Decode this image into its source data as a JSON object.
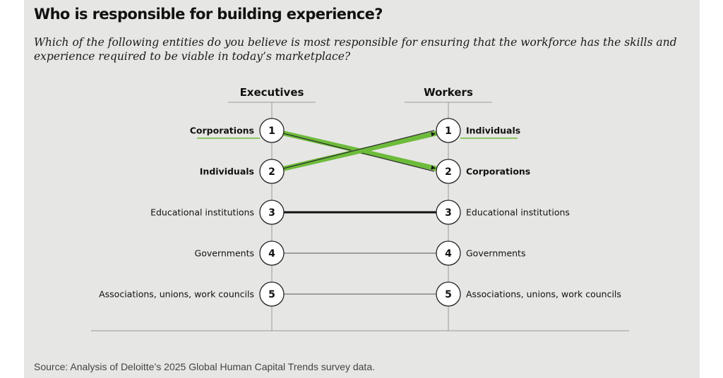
{
  "title": "Who is responsible for building experience?",
  "subtitle": "Which of the following entities do you believe is most responsible for ensuring that the workforce has the skills and experience required to be viable in today’s marketplace?",
  "source": "Source: Analysis of Deloitte’s 2025 Global Human Capital Trends survey data.",
  "colors": {
    "highlight": "#6dbb3a",
    "neutral": "#111111",
    "background": "#e6e6e4"
  },
  "chart_data": {
    "type": "slope",
    "columns": [
      "Executives",
      "Workers"
    ],
    "entities": [
      {
        "name": "Corporations",
        "ranks": [
          1,
          2
        ],
        "highlight": true
      },
      {
        "name": "Individuals",
        "ranks": [
          2,
          1
        ],
        "highlight": true
      },
      {
        "name": "Educational institutions",
        "ranks": [
          3,
          3
        ],
        "highlight": false
      },
      {
        "name": "Governments",
        "ranks": [
          4,
          4
        ],
        "highlight": false
      },
      {
        "name": "Associations, unions, work councils",
        "ranks": [
          5,
          5
        ],
        "highlight": false
      }
    ],
    "rank_labels": [
      "1",
      "2",
      "3",
      "4",
      "5"
    ]
  }
}
